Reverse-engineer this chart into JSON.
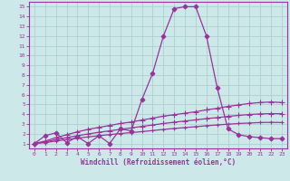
{
  "xlabel": "Windchill (Refroidissement éolien,°C)",
  "bg_color": "#cce8e8",
  "grid_color": "#aacccc",
  "line_color": "#993399",
  "x_ticks": [
    0,
    1,
    2,
    3,
    4,
    5,
    6,
    7,
    8,
    9,
    10,
    11,
    12,
    13,
    14,
    15,
    16,
    17,
    18,
    19,
    20,
    21,
    22,
    23
  ],
  "y_ticks": [
    1,
    2,
    3,
    4,
    5,
    6,
    7,
    8,
    9,
    10,
    11,
    12,
    13,
    14,
    15
  ],
  "xlim": [
    -0.5,
    23.5
  ],
  "ylim": [
    0.5,
    15.5
  ],
  "series": {
    "line1": {
      "x": [
        0,
        1,
        2,
        3,
        4,
        5,
        6,
        7,
        8,
        9,
        10,
        11,
        12,
        13,
        14,
        15,
        16,
        17,
        18,
        19,
        20,
        21,
        22,
        23
      ],
      "y": [
        1.0,
        1.8,
        2.1,
        1.1,
        1.7,
        1.0,
        1.8,
        1.0,
        2.5,
        2.3,
        5.5,
        8.2,
        12.0,
        14.8,
        15.0,
        15.0,
        12.0,
        6.7,
        2.5,
        1.9,
        1.7,
        1.6,
        1.5,
        1.5
      ],
      "marker": "D",
      "markersize": 2.5,
      "lw": 0.9
    },
    "line2": {
      "x": [
        0,
        1,
        2,
        3,
        4,
        5,
        6,
        7,
        8,
        9,
        10,
        11,
        12,
        13,
        14,
        15,
        16,
        17,
        18,
        19,
        20,
        21,
        22,
        23
      ],
      "y": [
        1.0,
        1.25,
        1.6,
        1.9,
        2.2,
        2.45,
        2.65,
        2.85,
        3.05,
        3.2,
        3.4,
        3.6,
        3.8,
        3.95,
        4.1,
        4.25,
        4.45,
        4.6,
        4.8,
        4.95,
        5.1,
        5.2,
        5.25,
        5.2
      ],
      "marker": "+",
      "markersize": 4,
      "lw": 0.9
    },
    "line3": {
      "x": [
        0,
        1,
        2,
        3,
        4,
        5,
        6,
        7,
        8,
        9,
        10,
        11,
        12,
        13,
        14,
        15,
        16,
        17,
        18,
        19,
        20,
        21,
        22,
        23
      ],
      "y": [
        1.0,
        1.15,
        1.4,
        1.6,
        1.8,
        1.98,
        2.15,
        2.3,
        2.45,
        2.6,
        2.75,
        2.9,
        3.05,
        3.18,
        3.3,
        3.42,
        3.55,
        3.65,
        3.78,
        3.88,
        3.97,
        4.03,
        4.06,
        4.05
      ],
      "marker": "+",
      "markersize": 4,
      "lw": 0.9
    },
    "line4": {
      "x": [
        0,
        1,
        2,
        3,
        4,
        5,
        6,
        7,
        8,
        9,
        10,
        11,
        12,
        13,
        14,
        15,
        16,
        17,
        18,
        19,
        20,
        21,
        22,
        23
      ],
      "y": [
        1.0,
        1.1,
        1.25,
        1.4,
        1.55,
        1.68,
        1.8,
        1.92,
        2.02,
        2.12,
        2.22,
        2.33,
        2.44,
        2.54,
        2.63,
        2.72,
        2.82,
        2.9,
        2.98,
        3.05,
        3.1,
        3.15,
        3.17,
        3.15
      ],
      "marker": "+",
      "markersize": 3,
      "lw": 0.9
    }
  }
}
